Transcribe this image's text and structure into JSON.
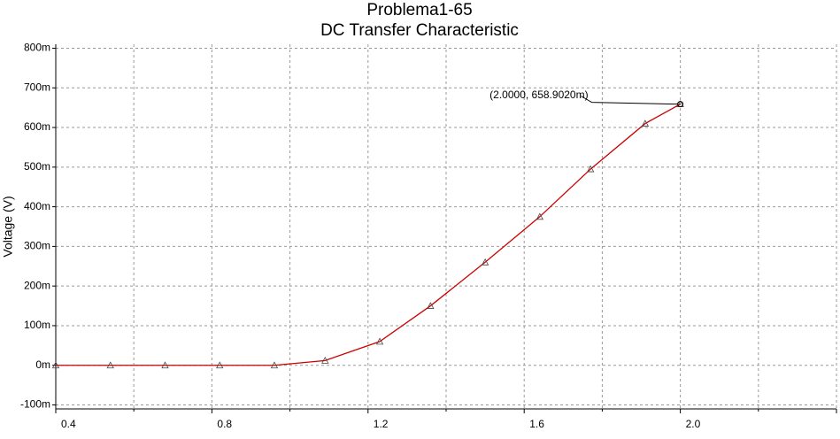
{
  "chart_data": {
    "type": "line",
    "title": "Problema1-65",
    "subtitle": "DC Transfer Characteristic",
    "y_label": "Voltage (V)",
    "x": [
      0.4,
      0.54,
      0.68,
      0.82,
      0.96,
      1.09,
      1.23,
      1.36,
      1.5,
      1.64,
      1.77,
      1.91,
      2.0
    ],
    "series": [
      {
        "name": "V",
        "color": "#cc0000",
        "values": [
          0,
          0,
          0,
          0,
          0,
          0.012,
          0.06,
          0.15,
          0.26,
          0.375,
          0.495,
          0.61,
          0.659
        ]
      }
    ],
    "xlim": [
      0.4,
      2.4
    ],
    "ylim": [
      -0.11,
      0.81
    ],
    "xticks": [
      0.4,
      0.8,
      1.2,
      1.6,
      {
        "value": 2,
        "label": "2.0"
      },
      2.4
    ],
    "xminor": [
      0.6,
      1.0,
      1.4,
      1.8,
      2.2
    ],
    "yticks": [
      {
        "value": -0.1,
        "label": "-100m"
      },
      {
        "value": 0,
        "label": "0m"
      },
      {
        "value": 0.1,
        "label": "100m"
      },
      {
        "value": 0.2,
        "label": "200m"
      },
      {
        "value": 0.3,
        "label": "300m"
      },
      {
        "value": 0.4,
        "label": "400m"
      },
      {
        "value": 0.5,
        "label": "500m"
      },
      {
        "value": 0.6,
        "label": "600m"
      },
      {
        "value": 0.7,
        "label": "700m"
      },
      {
        "value": 0.8,
        "label": "800m"
      }
    ],
    "grid": true,
    "annotation": {
      "text": "(2.0000, 658.9020m)",
      "x": 2,
      "y": 0.659
    }
  }
}
